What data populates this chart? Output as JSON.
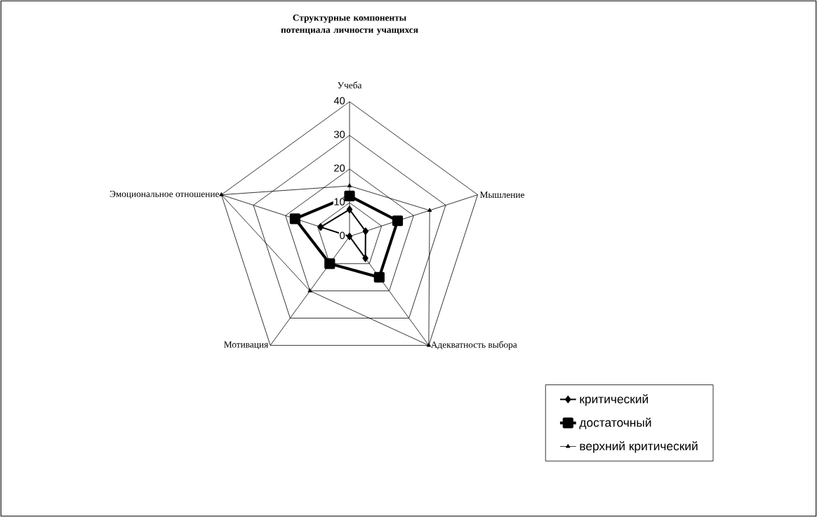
{
  "chart_data": {
    "type": "radar",
    "title": "Структурные компоненты потенциала личности учащихся",
    "categories": [
      "Учеба",
      "Мышление",
      "Адекватность выбора",
      "Мотивация",
      "Эмоциональное отношение"
    ],
    "ylim": [
      0,
      40
    ],
    "yticks": [
      0,
      10,
      20,
      30,
      40
    ],
    "grid": true,
    "legend": "bottom right",
    "series": [
      {
        "name": "критический",
        "color": "#000000",
        "marker": "diamond",
        "values": [
          8,
          5,
          8,
          0,
          9
        ]
      },
      {
        "name": "достаточный",
        "color": "#000000",
        "marker": "square",
        "values": [
          12,
          15,
          15,
          10,
          17
        ]
      },
      {
        "name": "верхний критический",
        "color": "#000000",
        "marker": "triangle",
        "values": [
          15,
          25,
          40,
          20,
          40
        ]
      }
    ]
  }
}
